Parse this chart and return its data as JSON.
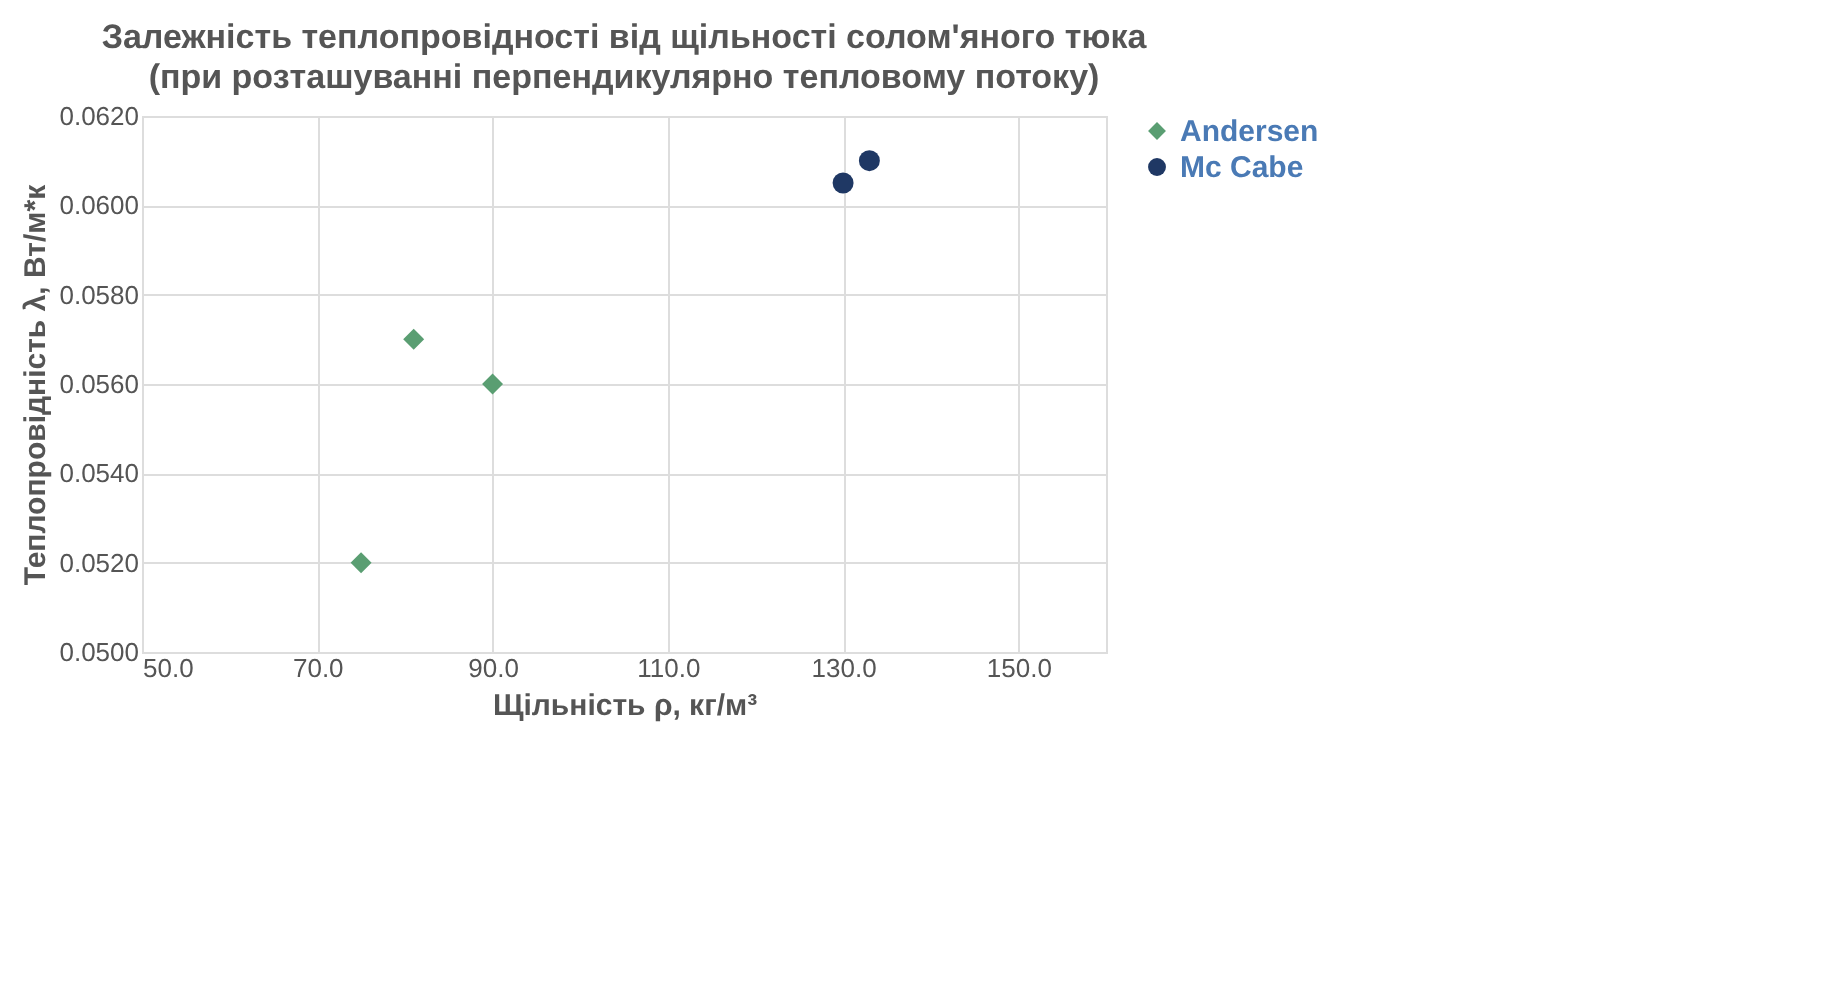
{
  "chart_data": {
    "type": "scatter",
    "title": "Залежність теплопровідності від щільності солом'яного тюка",
    "subtitle": "(при розташуванні перпендикулярно тепловому потоку)",
    "xlabel": "Щільність ρ, кг/м³",
    "ylabel": "Теплопровідність λ, Вт/м*к",
    "series": [
      {
        "name": "Andersen",
        "color": "#5a9e72",
        "marker": "diamond",
        "x": [
          75,
          81,
          90
        ],
        "values": [
          0.052,
          0.057,
          0.056
        ]
      },
      {
        "name": "Mc Cabe",
        "color": "#1f3864",
        "marker": "circle",
        "x": [
          130,
          133
        ],
        "values": [
          0.0605,
          0.061
        ]
      }
    ],
    "xlim": [
      50,
      160
    ],
    "ylim": [
      0.05,
      0.062
    ],
    "xticks": [
      {
        "value": 50,
        "label": "50.0"
      },
      {
        "value": 70,
        "label": "70.0"
      },
      {
        "value": 90,
        "label": "90.0"
      },
      {
        "value": 110,
        "label": "110.0"
      },
      {
        "value": 130,
        "label": "130.0"
      },
      {
        "value": 150,
        "label": "150.0"
      }
    ],
    "yticks": [
      {
        "value": 0.05,
        "label": "0.0500"
      },
      {
        "value": 0.052,
        "label": "0.0520"
      },
      {
        "value": 0.054,
        "label": "0.0540"
      },
      {
        "value": 0.056,
        "label": "0.0560"
      },
      {
        "value": 0.058,
        "label": "0.0580"
      },
      {
        "value": 0.06,
        "label": "0.0600"
      },
      {
        "value": 0.062,
        "label": "0.0620"
      }
    ],
    "grid": true,
    "legend": "right"
  }
}
